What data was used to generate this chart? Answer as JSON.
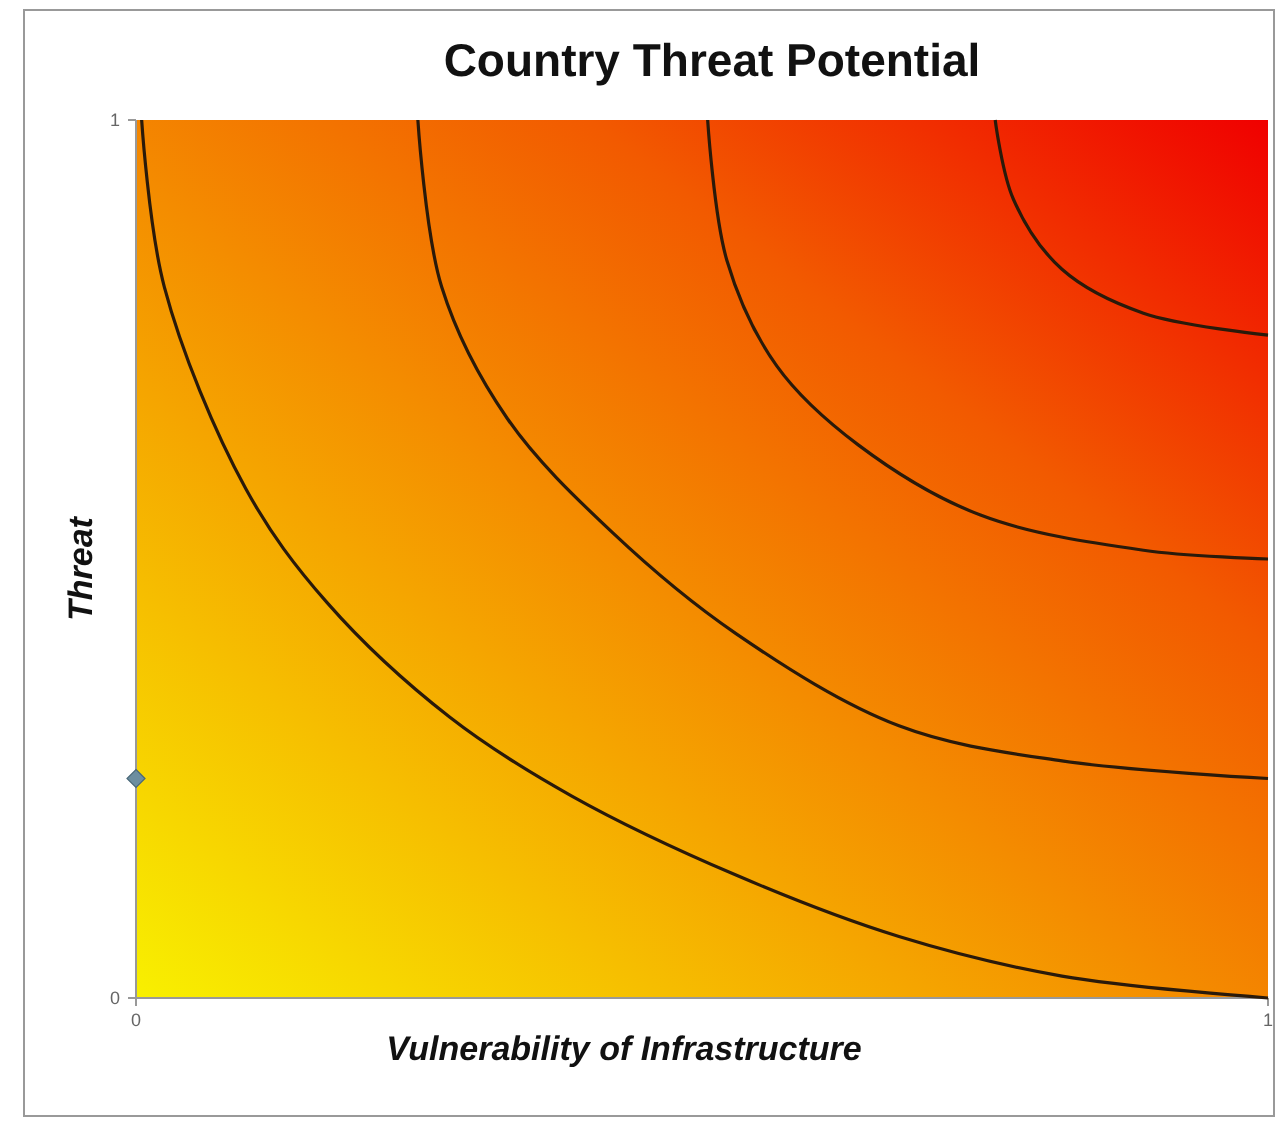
{
  "chart_data": {
    "type": "line",
    "title": "Country Threat Potential",
    "xlabel": "Vulnerability of Infrastructure",
    "ylabel": "Threat",
    "xlim": [
      0,
      1
    ],
    "ylim": [
      0,
      1
    ],
    "xticks": [
      0,
      1
    ],
    "yticks": [
      0,
      1
    ],
    "grid": false,
    "series": [
      {
        "color": "#2a1a0a",
        "marker": "none",
        "line_style": "solid",
        "x": [
          0.005,
          0.025,
          0.097,
          0.169,
          0.277,
          0.385,
          0.53,
          0.674,
          0.818,
          1
        ],
        "values": [
          1,
          0.81,
          0.58,
          0.45,
          0.32,
          0.23,
          0.14,
          0.07,
          0.025,
          0
        ]
      },
      {
        "color": "#2a1a0a",
        "marker": "none",
        "line_style": "solid",
        "x": [
          0.249,
          0.27,
          0.328,
          0.421,
          0.53,
          0.674,
          0.818,
          1
        ],
        "values": [
          1,
          0.81,
          0.66,
          0.53,
          0.415,
          0.31,
          0.27,
          0.25
        ]
      },
      {
        "color": "#2a1a0a",
        "marker": "none",
        "line_style": "solid",
        "x": [
          0.505,
          0.522,
          0.566,
          0.638,
          0.746,
          0.89,
          1
        ],
        "values": [
          1,
          0.84,
          0.72,
          0.63,
          0.55,
          0.51,
          0.5
        ]
      },
      {
        "color": "#2a1a0a",
        "marker": "none",
        "line_style": "solid",
        "x": [
          0.759,
          0.775,
          0.818,
          0.89,
          1
        ],
        "values": [
          1,
          0.91,
          0.83,
          0.78,
          0.755
        ]
      },
      {
        "type": "scatter",
        "color": "#6c8ea0",
        "marker": "diamond",
        "x": [
          0
        ],
        "values": [
          0.25
        ]
      }
    ]
  }
}
